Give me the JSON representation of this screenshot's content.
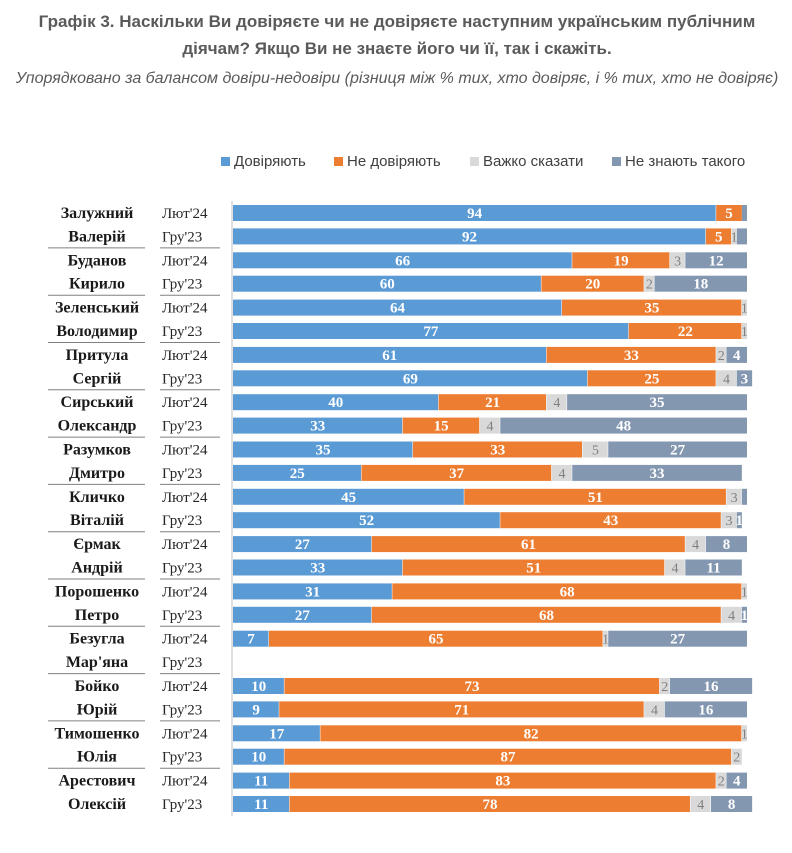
{
  "title": "Графік 3. Наскільки Ви довіряєте чи не довіряєте наступним українським публічним діячам? Якщо Ви не знаєте його чи її, так і скажіть.",
  "subtitle": "Упорядковано за балансом довіри-недовіри (різниця між % тих, хто довіряє, і % тих, хто не довіряє)",
  "chart_data": {
    "type": "bar",
    "orientation": "horizontal",
    "stacked": true,
    "percent_total": 100,
    "legend_position": "top-right",
    "series": [
      {
        "name": "Довіряють",
        "color": "#5b9bd5"
      },
      {
        "name": "Не довіряють",
        "color": "#ed7d31"
      },
      {
        "name": "Важко сказати",
        "color": "#d9d9d9"
      },
      {
        "name": "Не знають такого",
        "color": "#8497b0"
      }
    ],
    "groups": [
      {
        "person": [
          "Залужний",
          "Валерій"
        ],
        "rows": [
          {
            "period": "Лют'24",
            "values": [
              94,
              5,
              0,
              1
            ],
            "labels": [
              "94",
              "5",
              "",
              ""
            ]
          },
          {
            "period": "Гру'23",
            "values": [
              92,
              5,
              1,
              2
            ],
            "labels": [
              "92",
              "5",
              "1",
              ""
            ]
          }
        ]
      },
      {
        "person": [
          "Буданов",
          "Кирило"
        ],
        "rows": [
          {
            "period": "Лют'24",
            "values": [
              66,
              19,
              3,
              12
            ],
            "labels": [
              "66",
              "19",
              "3",
              "12"
            ]
          },
          {
            "period": "Гру'23",
            "values": [
              60,
              20,
              2,
              18
            ],
            "labels": [
              "60",
              "20",
              "2",
              "18"
            ]
          }
        ]
      },
      {
        "person": [
          "Зеленський",
          "Володимир"
        ],
        "rows": [
          {
            "period": "Лют'24",
            "values": [
              64,
              35,
              1,
              0
            ],
            "labels": [
              "64",
              "35",
              "1",
              ""
            ]
          },
          {
            "period": "Гру'23",
            "values": [
              77,
              22,
              1,
              0
            ],
            "labels": [
              "77",
              "22",
              "1",
              ""
            ]
          }
        ]
      },
      {
        "person": [
          "Притула",
          "Сергій"
        ],
        "rows": [
          {
            "period": "Лют'24",
            "values": [
              61,
              33,
              2,
              4
            ],
            "labels": [
              "61",
              "33",
              "2",
              "4"
            ]
          },
          {
            "period": "Гру'23",
            "values": [
              69,
              25,
              4,
              3
            ],
            "labels": [
              "69",
              "25",
              "4",
              "3"
            ]
          }
        ]
      },
      {
        "person": [
          "Сирський",
          "Олександр"
        ],
        "rows": [
          {
            "period": "Лют'24",
            "values": [
              40,
              21,
              4,
              35
            ],
            "labels": [
              "40",
              "21",
              "4",
              "35"
            ]
          },
          {
            "period": "Гру'23",
            "values": [
              33,
              15,
              4,
              48
            ],
            "labels": [
              "33",
              "15",
              "4",
              "48"
            ]
          }
        ]
      },
      {
        "person": [
          "Разумков",
          "Дмитро"
        ],
        "rows": [
          {
            "period": "Лют'24",
            "values": [
              35,
              33,
              5,
              27
            ],
            "labels": [
              "35",
              "33",
              "5",
              "27"
            ]
          },
          {
            "period": "Гру'23",
            "values": [
              25,
              37,
              4,
              33
            ],
            "labels": [
              "25",
              "37",
              "4",
              "33"
            ]
          }
        ]
      },
      {
        "person": [
          "Кличко",
          "Віталій"
        ],
        "rows": [
          {
            "period": "Лют'24",
            "values": [
              45,
              51,
              3,
              1
            ],
            "labels": [
              "45",
              "51",
              "3",
              ""
            ]
          },
          {
            "period": "Гру'23",
            "values": [
              52,
              43,
              3,
              1
            ],
            "labels": [
              "52",
              "43",
              "3",
              "1"
            ]
          }
        ]
      },
      {
        "person": [
          "Єрмак",
          "Андрій"
        ],
        "rows": [
          {
            "period": "Лют'24",
            "values": [
              27,
              61,
              4,
              8
            ],
            "labels": [
              "27",
              "61",
              "4",
              "8"
            ]
          },
          {
            "period": "Гру'23",
            "values": [
              33,
              51,
              4,
              11
            ],
            "labels": [
              "33",
              "51",
              "4",
              "11"
            ]
          }
        ]
      },
      {
        "person": [
          "Порошенко",
          "Петро"
        ],
        "rows": [
          {
            "period": "Лют'24",
            "values": [
              31,
              68,
              1,
              0
            ],
            "labels": [
              "31",
              "68",
              "1",
              ""
            ]
          },
          {
            "period": "Гру'23",
            "values": [
              27,
              68,
              4,
              1
            ],
            "labels": [
              "27",
              "68",
              "4",
              "1"
            ]
          }
        ]
      },
      {
        "person": [
          "Безугла",
          "Мар'яна"
        ],
        "rows": [
          {
            "period": "Лют'24",
            "values": [
              7,
              65,
              1,
              27
            ],
            "labels": [
              "7",
              "65",
              "1",
              "27"
            ]
          },
          {
            "period": "Гру'23",
            "values": [
              0,
              0,
              0,
              0
            ],
            "labels": [
              "",
              "",
              "",
              ""
            ]
          }
        ]
      },
      {
        "person": [
          "Бойко",
          "Юрій"
        ],
        "rows": [
          {
            "period": "Лют'24",
            "values": [
              10,
              73,
              2,
              16
            ],
            "labels": [
              "10",
              "73",
              "2",
              "16"
            ]
          },
          {
            "period": "Гру'23",
            "values": [
              9,
              71,
              4,
              16
            ],
            "labels": [
              "9",
              "71",
              "4",
              "16"
            ]
          }
        ]
      },
      {
        "person": [
          "Тимошенко",
          "Юлія"
        ],
        "rows": [
          {
            "period": "Лют'24",
            "values": [
              17,
              82,
              1,
              0
            ],
            "labels": [
              "17",
              "82",
              "1",
              ""
            ]
          },
          {
            "period": "Гру'23",
            "values": [
              10,
              87,
              2,
              0
            ],
            "labels": [
              "10",
              "87",
              "2",
              ""
            ]
          }
        ]
      },
      {
        "person": [
          "Арестович",
          "Олексій"
        ],
        "rows": [
          {
            "period": "Лют'24",
            "values": [
              11,
              83,
              2,
              4
            ],
            "labels": [
              "11",
              "83",
              "2",
              "4"
            ]
          },
          {
            "period": "Гру'23",
            "values": [
              11,
              78,
              4,
              8
            ],
            "labels": [
              "11",
              "78",
              "4",
              "8"
            ]
          }
        ]
      }
    ]
  }
}
